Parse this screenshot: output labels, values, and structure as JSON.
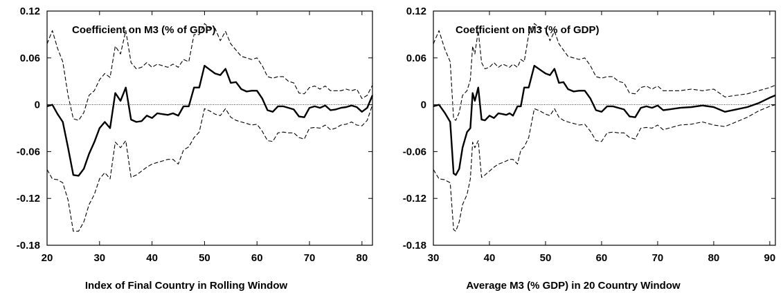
{
  "chart_data": [
    {
      "type": "line",
      "title": "Coefficient on M3 (% of GDP)",
      "xlabel": "Index of Final Country in Rolling Window",
      "ylabel": "",
      "xlim": [
        20,
        82
      ],
      "ylim": [
        -0.18,
        0.12
      ],
      "xticks": [
        20,
        30,
        40,
        50,
        60,
        70,
        80
      ],
      "yticks": [
        0.12,
        0.06,
        0,
        -0.06,
        -0.12,
        -0.18
      ],
      "ytick_labels": [
        "0.12",
        "0.06",
        "0",
        "-0.06",
        "-0.12",
        "-0.18"
      ],
      "zero_line": true,
      "series": [
        {
          "style": "solid",
          "x": [
            20,
            21,
            22,
            23,
            24,
            25,
            26,
            27,
            28,
            29,
            30,
            31,
            32,
            33,
            34,
            35,
            36,
            37,
            38,
            39,
            40,
            41,
            42,
            43,
            44,
            45,
            46,
            47,
            48,
            49,
            50,
            51,
            52,
            53,
            54,
            55,
            56,
            57,
            58,
            59,
            60,
            61,
            62,
            63,
            64,
            65,
            66,
            67,
            68,
            69,
            70,
            71,
            72,
            73,
            74,
            75,
            76,
            77,
            78,
            79,
            80,
            81,
            82
          ],
          "y": [
            -0.002,
            0.0,
            -0.012,
            -0.022,
            -0.055,
            -0.09,
            -0.091,
            -0.082,
            -0.063,
            -0.048,
            -0.03,
            -0.022,
            -0.03,
            0.015,
            0.005,
            0.022,
            -0.019,
            -0.022,
            -0.021,
            -0.014,
            -0.017,
            -0.011,
            -0.012,
            -0.013,
            -0.011,
            -0.014,
            -0.002,
            -0.002,
            0.022,
            0.022,
            0.05,
            0.045,
            0.04,
            0.038,
            0.046,
            0.028,
            0.029,
            0.02,
            0.017,
            0.018,
            0.018,
            0.008,
            -0.007,
            -0.009,
            -0.002,
            -0.002,
            -0.004,
            -0.006,
            -0.015,
            -0.016,
            -0.004,
            -0.002,
            -0.004,
            -0.001,
            -0.007,
            -0.006,
            -0.004,
            -0.003,
            -0.001,
            -0.003,
            -0.009,
            -0.004,
            0.012
          ]
        },
        {
          "style": "dashed",
          "x": [
            20,
            21,
            22,
            23,
            24,
            25,
            26,
            27,
            28,
            29,
            30,
            31,
            32,
            33,
            34,
            35,
            36,
            37,
            38,
            39,
            40,
            41,
            42,
            43,
            44,
            45,
            46,
            47,
            48,
            49,
            50,
            51,
            52,
            53,
            54,
            55,
            56,
            57,
            58,
            59,
            60,
            61,
            62,
            63,
            64,
            65,
            66,
            67,
            68,
            69,
            70,
            71,
            72,
            73,
            74,
            75,
            76,
            77,
            78,
            79,
            80,
            81,
            82
          ],
          "y": [
            0.078,
            0.095,
            0.072,
            0.055,
            0.012,
            -0.018,
            -0.02,
            -0.01,
            0.012,
            0.018,
            0.032,
            0.04,
            0.035,
            0.075,
            0.065,
            0.095,
            0.054,
            0.046,
            0.048,
            0.054,
            0.048,
            0.052,
            0.05,
            0.048,
            0.052,
            0.048,
            0.058,
            0.055,
            0.09,
            0.09,
            0.104,
            0.098,
            0.098,
            0.082,
            0.094,
            0.078,
            0.07,
            0.062,
            0.06,
            0.058,
            0.06,
            0.05,
            0.036,
            0.034,
            0.036,
            0.036,
            0.03,
            0.028,
            0.015,
            0.014,
            0.022,
            0.024,
            0.02,
            0.024,
            0.018,
            0.018,
            0.018,
            0.02,
            0.018,
            0.02,
            0.008,
            0.012,
            0.025
          ]
        },
        {
          "style": "dashed",
          "x": [
            20,
            21,
            22,
            23,
            24,
            25,
            26,
            27,
            28,
            29,
            30,
            31,
            32,
            33,
            34,
            35,
            36,
            37,
            38,
            39,
            40,
            41,
            42,
            43,
            44,
            45,
            46,
            47,
            48,
            49,
            50,
            51,
            52,
            53,
            54,
            55,
            56,
            57,
            58,
            59,
            60,
            61,
            62,
            63,
            64,
            65,
            66,
            67,
            68,
            69,
            70,
            71,
            72,
            73,
            74,
            75,
            76,
            77,
            78,
            79,
            80,
            81,
            82
          ],
          "y": [
            -0.083,
            -0.095,
            -0.096,
            -0.1,
            -0.122,
            -0.162,
            -0.162,
            -0.15,
            -0.128,
            -0.115,
            -0.095,
            -0.087,
            -0.095,
            -0.048,
            -0.055,
            -0.046,
            -0.093,
            -0.09,
            -0.085,
            -0.08,
            -0.076,
            -0.074,
            -0.072,
            -0.07,
            -0.07,
            -0.076,
            -0.058,
            -0.054,
            -0.042,
            -0.035,
            -0.005,
            -0.008,
            -0.012,
            -0.014,
            -0.005,
            -0.016,
            -0.02,
            -0.022,
            -0.024,
            -0.026,
            -0.025,
            -0.034,
            -0.046,
            -0.047,
            -0.036,
            -0.035,
            -0.036,
            -0.036,
            -0.042,
            -0.044,
            -0.03,
            -0.029,
            -0.03,
            -0.026,
            -0.032,
            -0.03,
            -0.026,
            -0.025,
            -0.022,
            -0.026,
            -0.027,
            -0.02,
            0.0
          ]
        }
      ]
    },
    {
      "type": "line",
      "title": "Coefficient on M3 (% of GDP)",
      "xlabel": "Average M3 (% GDP) in 20 Country Window",
      "ylabel": "",
      "xlim": [
        30,
        91
      ],
      "ylim": [
        -0.18,
        0.12
      ],
      "xticks": [
        30,
        40,
        50,
        60,
        70,
        80,
        90
      ],
      "yticks": [
        0.12,
        0.06,
        0,
        -0.06,
        -0.12,
        -0.18
      ],
      "ytick_labels": [
        "0.12",
        "0.06",
        "0",
        "-0.06",
        "-0.12",
        "-0.18"
      ],
      "zero_line": true,
      "series": [
        {
          "style": "solid",
          "x": [
            30,
            31,
            32,
            33,
            33.6,
            34,
            34.6,
            35.2,
            36,
            36.6,
            37,
            37.4,
            38,
            38.6,
            39.2,
            40,
            40.8,
            41.6,
            42.4,
            43,
            43.6,
            44.2,
            45,
            45.6,
            46.2,
            47,
            48,
            49,
            50,
            50.8,
            51.6,
            52.4,
            53.2,
            54,
            55,
            56,
            57,
            58,
            59,
            60,
            61,
            62,
            63,
            64,
            65,
            66,
            67,
            68,
            69,
            70,
            71,
            72,
            74,
            76,
            78,
            80,
            82,
            84,
            86,
            88,
            90,
            91
          ],
          "y": [
            -0.002,
            0.0,
            -0.01,
            -0.022,
            -0.088,
            -0.09,
            -0.082,
            -0.055,
            -0.035,
            -0.03,
            0.015,
            0.005,
            0.022,
            -0.019,
            -0.02,
            -0.014,
            -0.017,
            -0.011,
            -0.012,
            -0.013,
            -0.011,
            -0.014,
            -0.002,
            -0.002,
            0.022,
            0.022,
            0.05,
            0.045,
            0.04,
            0.038,
            0.046,
            0.028,
            0.029,
            0.02,
            0.017,
            0.018,
            0.018,
            0.008,
            -0.007,
            -0.009,
            -0.002,
            -0.002,
            -0.004,
            -0.006,
            -0.015,
            -0.016,
            -0.004,
            -0.002,
            -0.004,
            -0.001,
            -0.007,
            -0.006,
            -0.004,
            -0.003,
            -0.001,
            -0.003,
            -0.009,
            -0.006,
            -0.003,
            0.002,
            0.009,
            0.012
          ]
        },
        {
          "style": "dashed",
          "x": [
            30,
            31,
            32,
            33,
            33.6,
            34,
            34.6,
            35.2,
            36,
            36.6,
            37,
            37.4,
            38,
            38.6,
            39.2,
            40,
            40.8,
            41.6,
            42.4,
            43,
            43.6,
            44.2,
            45,
            45.6,
            46.2,
            47,
            48,
            49,
            50,
            50.8,
            51.6,
            52.4,
            53.2,
            54,
            55,
            56,
            57,
            58,
            59,
            60,
            61,
            62,
            63,
            64,
            65,
            66,
            67,
            68,
            69,
            70,
            71,
            72,
            74,
            76,
            78,
            80,
            82,
            84,
            86,
            88,
            90,
            91
          ],
          "y": [
            0.078,
            0.095,
            0.072,
            0.055,
            -0.018,
            -0.02,
            -0.01,
            0.012,
            0.018,
            0.032,
            0.075,
            0.065,
            0.095,
            0.054,
            0.046,
            0.048,
            0.054,
            0.048,
            0.052,
            0.05,
            0.048,
            0.052,
            0.048,
            0.058,
            0.055,
            0.09,
            0.104,
            0.098,
            0.098,
            0.082,
            0.094,
            0.078,
            0.07,
            0.062,
            0.06,
            0.058,
            0.06,
            0.05,
            0.036,
            0.034,
            0.036,
            0.036,
            0.03,
            0.028,
            0.015,
            0.014,
            0.022,
            0.024,
            0.02,
            0.024,
            0.018,
            0.018,
            0.018,
            0.02,
            0.018,
            0.02,
            0.01,
            0.012,
            0.014,
            0.018,
            0.022,
            0.025
          ]
        },
        {
          "style": "dashed",
          "x": [
            30,
            31,
            32,
            33,
            33.6,
            34,
            34.6,
            35.2,
            36,
            36.6,
            37,
            37.4,
            38,
            38.6,
            39.2,
            40,
            40.8,
            41.6,
            42.4,
            43,
            43.6,
            44.2,
            45,
            45.6,
            46.2,
            47,
            48,
            49,
            50,
            50.8,
            51.6,
            52.4,
            53.2,
            54,
            55,
            56,
            57,
            58,
            59,
            60,
            61,
            62,
            63,
            64,
            65,
            66,
            67,
            68,
            69,
            70,
            71,
            72,
            74,
            76,
            78,
            80,
            82,
            84,
            86,
            88,
            90,
            91
          ],
          "y": [
            -0.083,
            -0.095,
            -0.096,
            -0.1,
            -0.16,
            -0.162,
            -0.15,
            -0.128,
            -0.115,
            -0.095,
            -0.048,
            -0.055,
            -0.046,
            -0.093,
            -0.09,
            -0.085,
            -0.08,
            -0.076,
            -0.074,
            -0.072,
            -0.07,
            -0.07,
            -0.076,
            -0.058,
            -0.054,
            -0.042,
            -0.005,
            -0.008,
            -0.012,
            -0.014,
            -0.005,
            -0.016,
            -0.02,
            -0.022,
            -0.024,
            -0.026,
            -0.025,
            -0.034,
            -0.046,
            -0.047,
            -0.036,
            -0.035,
            -0.036,
            -0.036,
            -0.042,
            -0.044,
            -0.03,
            -0.029,
            -0.03,
            -0.026,
            -0.032,
            -0.03,
            -0.026,
            -0.025,
            -0.022,
            -0.026,
            -0.028,
            -0.022,
            -0.016,
            -0.008,
            -0.002,
            0.0
          ]
        }
      ]
    }
  ]
}
